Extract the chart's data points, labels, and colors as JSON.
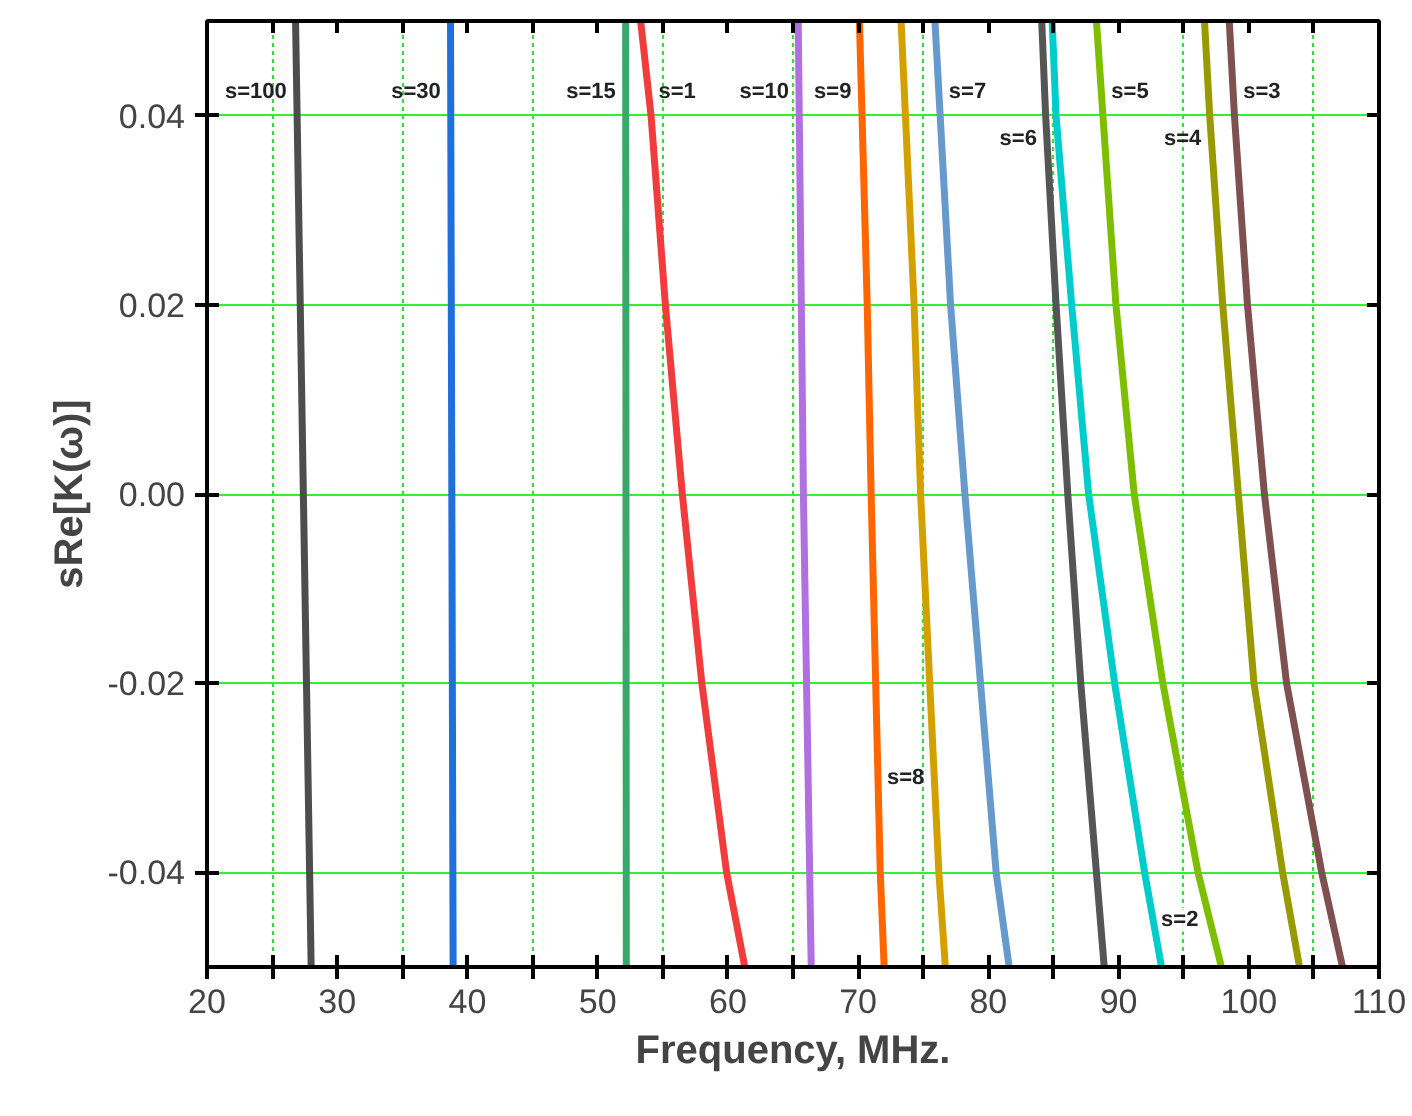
{
  "chart_data": {
    "type": "line",
    "xlabel": "Frequency, MHz.",
    "ylabel": "sRe[K(ω)]",
    "xlim": [
      20,
      110
    ],
    "ylim": [
      -0.05,
      0.05
    ],
    "xticks": [
      20,
      {
        "value": 25,
        "label": null
      },
      30,
      {
        "value": 35,
        "label": null
      },
      40,
      {
        "value": 45,
        "label": null
      },
      50,
      {
        "value": 55,
        "label": null
      },
      60,
      {
        "value": 65,
        "label": null
      },
      70,
      {
        "value": 75,
        "label": null
      },
      80,
      {
        "value": 85,
        "label": null
      },
      90,
      {
        "value": 95,
        "label": null
      },
      100,
      {
        "value": 105,
        "label": null
      },
      110
    ],
    "yticks": [
      {
        "value": -0.04,
        "label": "-0.04"
      },
      {
        "value": -0.02,
        "label": "-0.02"
      },
      {
        "value": 0,
        "label": "0.00"
      },
      {
        "value": 0.02,
        "label": "0.02"
      },
      {
        "value": 0.04,
        "label": "0.04"
      }
    ],
    "grid": true,
    "legend": false,
    "marker": "none",
    "line_style": "solid",
    "series": [
      {
        "name": "s=100",
        "color": "#4d4d4d",
        "x": [
          26.8,
          28.0
        ],
        "values": [
          0.05,
          -0.05
        ]
      },
      {
        "name": "s=30",
        "color": "#1f6fdc",
        "x": [
          38.7,
          38.9
        ],
        "values": [
          0.05,
          -0.05
        ]
      },
      {
        "name": "s=15",
        "color": "#3aa86b",
        "x": [
          52.15,
          52.2
        ],
        "values": [
          0.05,
          -0.05
        ]
      },
      {
        "name": "s=1",
        "color": "#f03c3c",
        "x": [
          53.3,
          54.1,
          55.2,
          56.5,
          58.0,
          59.9,
          61.3
        ],
        "values": [
          0.05,
          0.04,
          0.02,
          0.0,
          -0.02,
          -0.04,
          -0.05
        ]
      },
      {
        "name": "s=10",
        "color": "#b070e0",
        "x": [
          65.4,
          65.8,
          66.4
        ],
        "values": [
          0.05,
          0.0,
          -0.05
        ]
      },
      {
        "name": "s=9",
        "color": "#ff6600",
        "x": [
          70.1,
          70.7,
          71.0,
          71.7,
          72.0
        ],
        "values": [
          0.05,
          0.02,
          0.0,
          -0.04,
          -0.05
        ]
      },
      {
        "name": "s=8",
        "color": "#d4a000",
        "x": [
          73.3,
          74.3,
          74.8,
          76.2,
          76.7
        ],
        "values": [
          0.05,
          0.02,
          0.0,
          -0.04,
          -0.05
        ]
      },
      {
        "name": "s=7",
        "color": "#6699cc",
        "x": [
          75.9,
          77.1,
          78.2,
          80.6,
          81.6
        ],
        "values": [
          0.05,
          0.02,
          0.0,
          -0.04,
          -0.05
        ]
      },
      {
        "name": "s=6",
        "color": "#555555",
        "x": [
          84.1,
          84.4,
          85.2,
          86.1,
          87.1,
          88.3,
          88.9
        ],
        "values": [
          0.05,
          0.04,
          0.02,
          0.0,
          -0.02,
          -0.04,
          -0.05
        ]
      },
      {
        "name": "s=2",
        "color": "#00cccc",
        "x": [
          84.9,
          85.2,
          86.4,
          87.7,
          89.7,
          92.0,
          93.3
        ],
        "values": [
          0.05,
          0.04,
          0.02,
          0.0,
          -0.02,
          -0.04,
          -0.05
        ]
      },
      {
        "name": "s=5",
        "color": "#7dbf00",
        "x": [
          88.3,
          88.8,
          89.8,
          91.2,
          93.4,
          96.1,
          97.9
        ],
        "values": [
          0.05,
          0.04,
          0.02,
          0.0,
          -0.02,
          -0.04,
          -0.05
        ]
      },
      {
        "name": "s=4",
        "color": "#999900",
        "x": [
          96.6,
          97.0,
          98.0,
          99.2,
          100.4,
          102.6,
          103.9
        ],
        "values": [
          0.05,
          0.04,
          0.02,
          0.0,
          -0.02,
          -0.04,
          -0.05
        ]
      },
      {
        "name": "s=3",
        "color": "#7f5050",
        "x": [
          98.5,
          98.9,
          99.9,
          101.2,
          102.9,
          105.6,
          107.2
        ],
        "values": [
          0.05,
          0.04,
          0.02,
          0.0,
          -0.02,
          -0.04,
          -0.05
        ]
      }
    ]
  }
}
